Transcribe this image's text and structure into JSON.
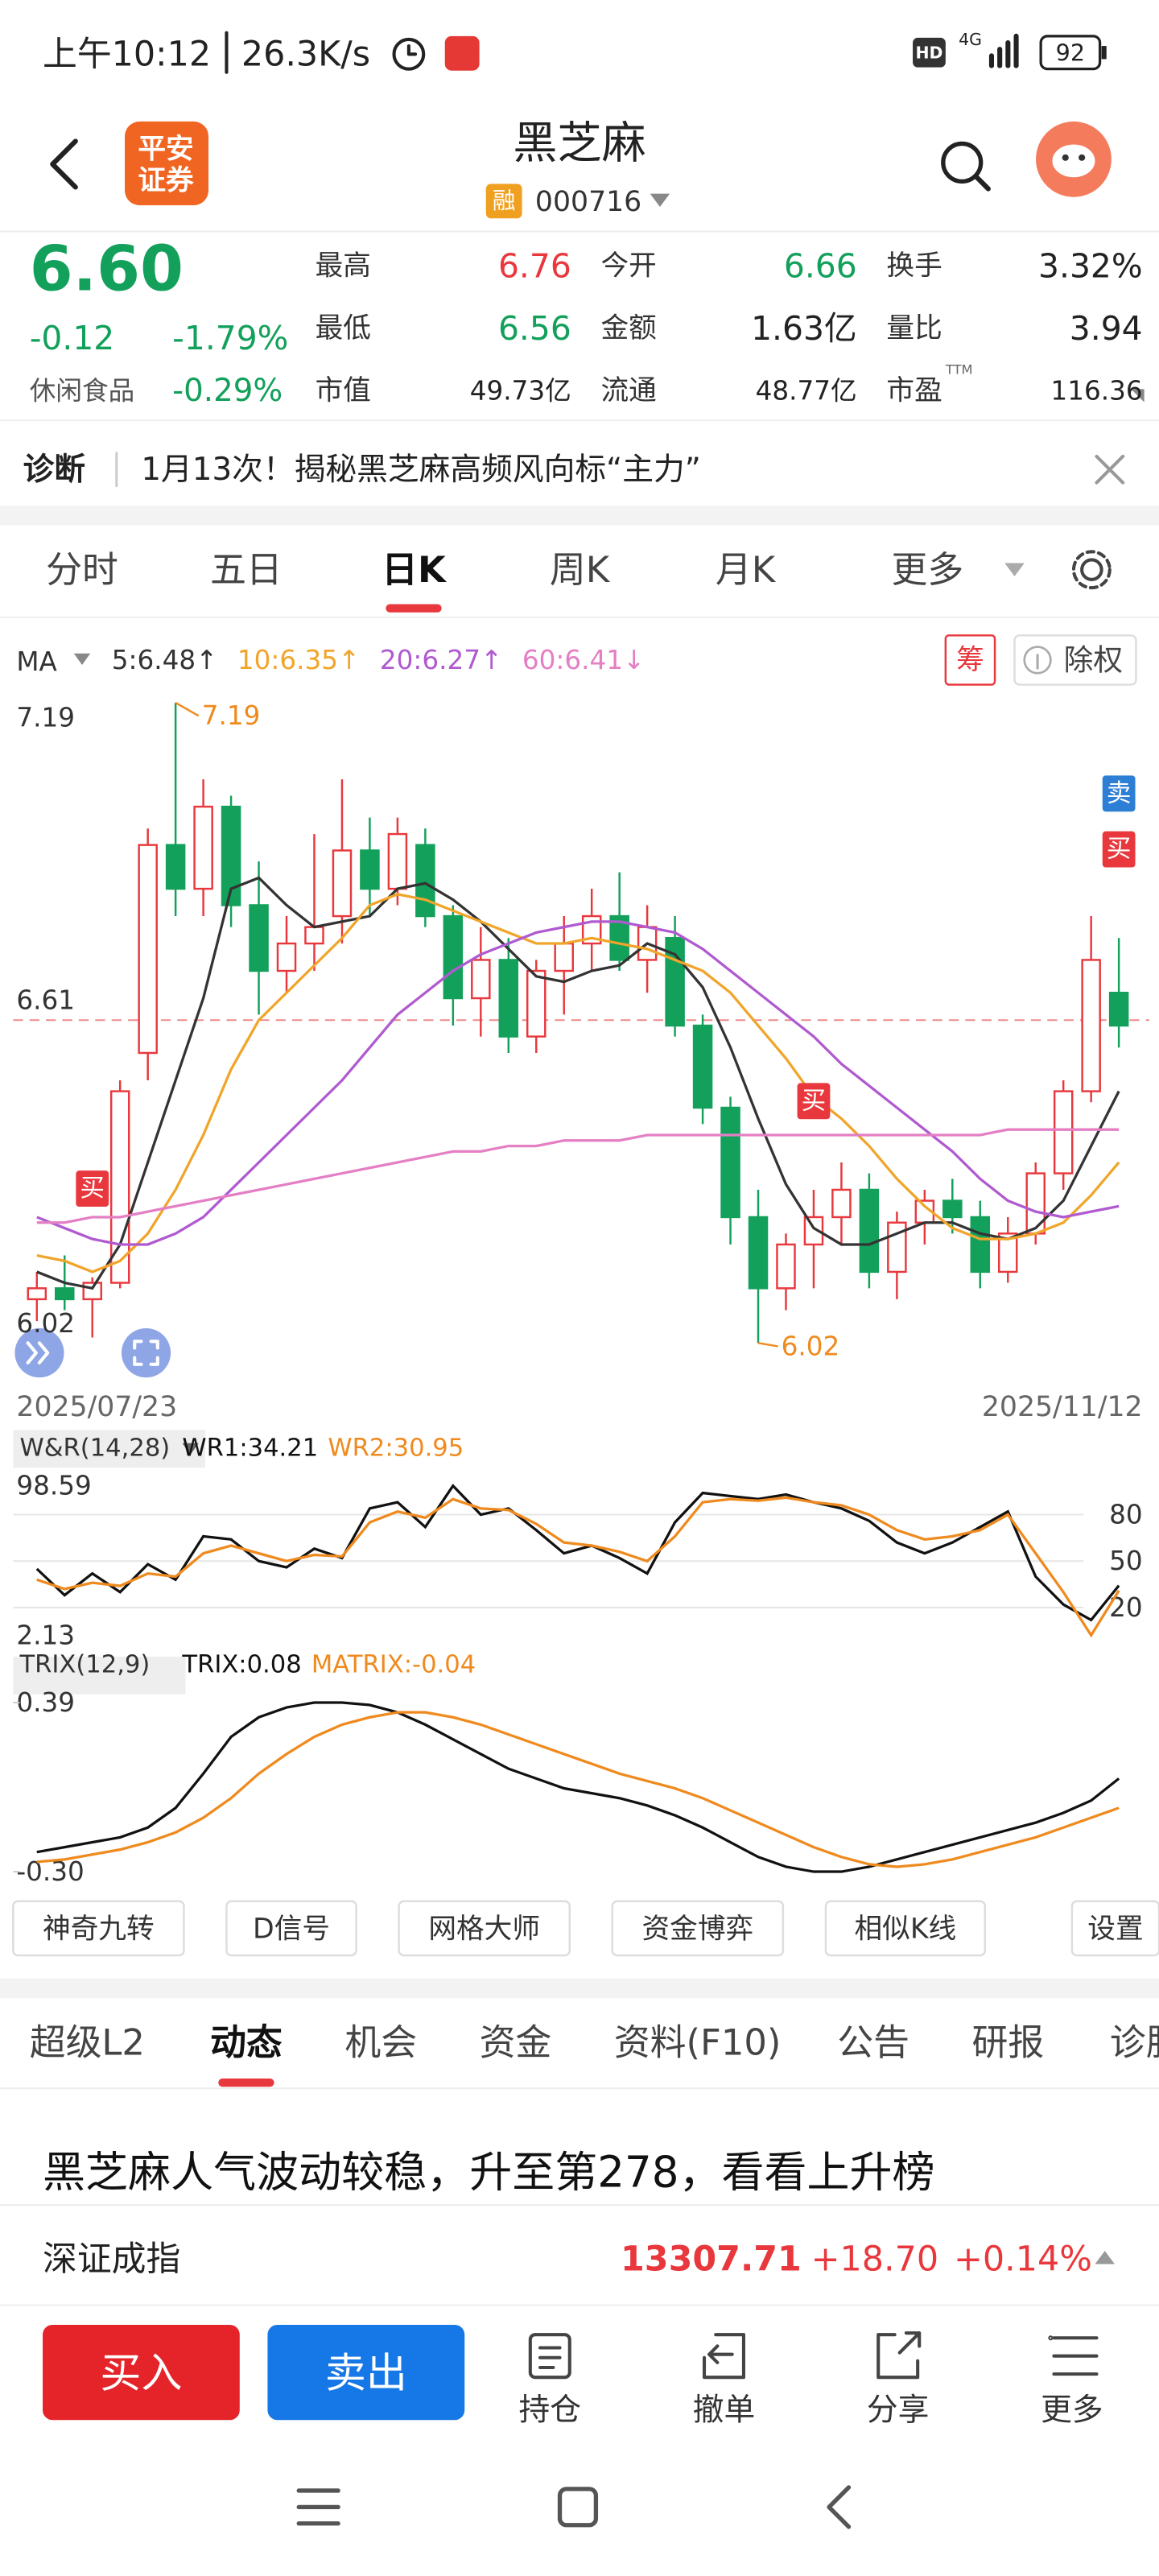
{
  "status_bar": {
    "time": "上午10:12",
    "speed": "26.3K/s",
    "hd": "HD",
    "network": "4G",
    "battery": "92"
  },
  "header": {
    "broker": [
      "平安",
      "证券"
    ],
    "name": "黑芝麻",
    "tag": "融",
    "code": "000716"
  },
  "quote": {
    "price": "6.60",
    "change": "-0.12",
    "change_pct": "-1.79%",
    "sector": "休闲食品",
    "sector_pct": "-0.29%",
    "stats": [
      [
        {
          "label": "最高",
          "value": "6.76",
          "color": "#e8383d"
        },
        {
          "label": "今开",
          "value": "6.66",
          "color": "#13a05b"
        },
        {
          "label": "换手",
          "value": "3.32%"
        }
      ],
      [
        {
          "label": "最低",
          "value": "6.56",
          "color": "#13a05b"
        },
        {
          "label": "金额",
          "value": "1.63亿"
        },
        {
          "label": "量比",
          "value": "3.94"
        }
      ],
      [
        {
          "label": "市值",
          "value": "49.73亿"
        },
        {
          "label": "流通",
          "value": "48.77亿"
        },
        {
          "label": "市盈",
          "sup": "TTM",
          "value": "116.36"
        }
      ]
    ]
  },
  "diagnosis": {
    "label": "诊断",
    "text": "1月13次！揭秘黑芝麻高频风向标“主力”"
  },
  "period_tabs": {
    "items": [
      "分时",
      "五日",
      "日K",
      "周K",
      "月K",
      "更多"
    ],
    "active": 2
  },
  "chart_tools": {
    "ma_label": "MA",
    "chip": "筹",
    "exright": "除权"
  },
  "chart_data": [
    {
      "type": "candlestick",
      "categories": [
        "2025/07/23",
        null,
        null,
        null,
        null,
        null,
        null,
        null,
        null,
        null,
        null,
        null,
        null,
        null,
        null,
        null,
        null,
        null,
        null,
        null,
        null,
        null,
        null,
        null,
        null,
        null,
        null,
        null,
        null,
        null,
        null,
        null,
        null,
        null,
        null,
        null,
        null,
        null,
        null,
        "2025/11/12"
      ],
      "open": [
        6.1,
        6.12,
        6.1,
        6.13,
        6.55,
        6.93,
        6.85,
        7.0,
        6.82,
        6.7,
        6.75,
        6.8,
        6.92,
        6.85,
        6.93,
        6.8,
        6.65,
        6.72,
        6.58,
        6.7,
        6.75,
        6.8,
        6.72,
        6.76,
        6.6,
        6.45,
        6.25,
        6.12,
        6.2,
        6.25,
        6.3,
        6.15,
        6.24,
        6.28,
        6.25,
        6.15,
        6.22,
        6.33,
        6.48,
        6.66
      ],
      "high": [
        6.15,
        6.18,
        6.14,
        6.5,
        6.96,
        7.19,
        7.05,
        7.02,
        6.9,
        6.8,
        6.95,
        7.05,
        6.98,
        6.98,
        6.96,
        6.82,
        6.78,
        6.76,
        6.72,
        6.8,
        6.85,
        6.88,
        6.82,
        6.8,
        6.62,
        6.47,
        6.3,
        6.22,
        6.3,
        6.35,
        6.33,
        6.26,
        6.3,
        6.32,
        6.28,
        6.25,
        6.35,
        6.5,
        6.8,
        6.76
      ],
      "low": [
        6.06,
        6.08,
        6.03,
        6.12,
        6.5,
        6.8,
        6.8,
        6.78,
        6.62,
        6.66,
        6.7,
        6.75,
        6.8,
        6.82,
        6.78,
        6.6,
        6.58,
        6.55,
        6.55,
        6.62,
        6.7,
        6.7,
        6.66,
        6.58,
        6.42,
        6.2,
        6.02,
        6.08,
        6.12,
        6.2,
        6.12,
        6.1,
        6.2,
        6.22,
        6.12,
        6.13,
        6.2,
        6.3,
        6.46,
        6.56
      ],
      "close": [
        6.12,
        6.1,
        6.13,
        6.48,
        6.93,
        6.85,
        7.0,
        6.82,
        6.7,
        6.75,
        6.78,
        6.92,
        6.85,
        6.95,
        6.8,
        6.65,
        6.72,
        6.58,
        6.7,
        6.75,
        6.8,
        6.72,
        6.78,
        6.6,
        6.45,
        6.25,
        6.12,
        6.2,
        6.25,
        6.3,
        6.15,
        6.24,
        6.28,
        6.25,
        6.15,
        6.22,
        6.33,
        6.48,
        6.72,
        6.6
      ],
      "up_color": "#e8383d",
      "down_color": "#13a05b",
      "ylim": [
        6.02,
        7.19
      ],
      "yticks": [
        7.19,
        6.61,
        6.02
      ],
      "reference_line": 6.61,
      "max_label": "7.19",
      "min_label": "6.02",
      "annotation_color": "#ef8a1e",
      "series": [
        {
          "name": "5:6.48↑",
          "color": "#333333",
          "values": [
            6.15,
            6.13,
            6.12,
            6.2,
            6.35,
            6.5,
            6.65,
            6.85,
            6.87,
            6.82,
            6.78,
            6.79,
            6.8,
            6.85,
            6.86,
            6.83,
            6.79,
            6.74,
            6.69,
            6.68,
            6.7,
            6.71,
            6.75,
            6.73,
            6.67,
            6.56,
            6.43,
            6.31,
            6.23,
            6.2,
            6.2,
            6.22,
            6.24,
            6.24,
            6.22,
            6.21,
            6.23,
            6.28,
            6.38,
            6.48
          ]
        },
        {
          "name": "10:6.35↑",
          "color": "#f0a52a",
          "values": [
            6.18,
            6.17,
            6.15,
            6.17,
            6.22,
            6.3,
            6.4,
            6.52,
            6.61,
            6.66,
            6.71,
            6.76,
            6.82,
            6.84,
            6.83,
            6.81,
            6.79,
            6.77,
            6.75,
            6.75,
            6.76,
            6.75,
            6.74,
            6.72,
            6.7,
            6.66,
            6.6,
            6.54,
            6.47,
            6.43,
            6.38,
            6.32,
            6.27,
            6.23,
            6.21,
            6.21,
            6.22,
            6.24,
            6.29,
            6.35
          ]
        },
        {
          "name": "20:6.27↑",
          "color": "#b05ad0",
          "values": [
            6.25,
            6.23,
            6.21,
            6.2,
            6.2,
            6.22,
            6.25,
            6.3,
            6.35,
            6.4,
            6.45,
            6.5,
            6.56,
            6.62,
            6.66,
            6.7,
            6.73,
            6.75,
            6.77,
            6.78,
            6.79,
            6.79,
            6.78,
            6.77,
            6.74,
            6.7,
            6.66,
            6.62,
            6.58,
            6.53,
            6.49,
            6.45,
            6.41,
            6.37,
            6.32,
            6.28,
            6.26,
            6.25,
            6.26,
            6.27
          ]
        },
        {
          "name": "60:6.41↓",
          "color": "#e47fc4",
          "values": [
            6.24,
            6.24,
            6.25,
            6.25,
            6.26,
            6.27,
            6.28,
            6.29,
            6.3,
            6.31,
            6.32,
            6.33,
            6.34,
            6.35,
            6.36,
            6.37,
            6.37,
            6.38,
            6.38,
            6.39,
            6.39,
            6.39,
            6.4,
            6.4,
            6.4,
            6.4,
            6.4,
            6.4,
            6.4,
            6.4,
            6.4,
            6.4,
            6.4,
            6.4,
            6.4,
            6.41,
            6.41,
            6.41,
            6.41,
            6.41
          ]
        }
      ],
      "signals": [
        {
          "label": "买",
          "index": 2,
          "color": "#e8383d"
        },
        {
          "label": "买",
          "index": 28,
          "color": "#e8383d"
        },
        {
          "label": "买",
          "index": 39,
          "color": "#e8383d"
        },
        {
          "label": "卖",
          "index": 39,
          "color": "#2d7fd6"
        }
      ]
    },
    {
      "type": "line",
      "title": "W&R(14,28)",
      "ylim": [
        2.13,
        98.59
      ],
      "ylim_labels": "left",
      "yticks": [
        20,
        50,
        80
      ],
      "ytick_side": "right",
      "grid": true,
      "series": [
        {
          "name": "WR1:34.21",
          "color": "#111111",
          "values": [
            45,
            28,
            42,
            30,
            48,
            38,
            66,
            64,
            50,
            46,
            58,
            52,
            84,
            88,
            72,
            98.59,
            80,
            84,
            70,
            55,
            60,
            52,
            42,
            75,
            94,
            92,
            90,
            93,
            88,
            84,
            76,
            62,
            55,
            62,
            72,
            82,
            40,
            22,
            12,
            34.21
          ]
        },
        {
          "name": "WR2:30.95",
          "color": "#ef8a1e",
          "values": [
            38,
            32,
            36,
            34,
            42,
            40,
            55,
            60,
            55,
            50,
            54,
            53,
            75,
            82,
            78,
            90,
            84,
            83,
            74,
            62,
            60,
            56,
            50,
            66,
            88,
            90,
            89,
            91,
            88,
            86,
            80,
            70,
            64,
            66,
            70,
            80,
            55,
            30,
            2.13,
            30.95
          ]
        }
      ]
    },
    {
      "type": "line",
      "title": "TRIX(12,9)",
      "ylim": [
        -0.3,
        0.39
      ],
      "yticks": [
        0.39,
        {
          "value": -0.3,
          "label": "-0.30"
        }
      ],
      "ytick_side": "left",
      "grid": false,
      "series": [
        {
          "name": "TRIX:0.08",
          "color": "#111111",
          "values": [
            -0.22,
            -0.2,
            -0.18,
            -0.16,
            -0.12,
            -0.04,
            0.1,
            0.25,
            0.33,
            0.37,
            0.39,
            0.39,
            0.38,
            0.35,
            0.3,
            0.24,
            0.18,
            0.12,
            0.08,
            0.04,
            0.02,
            0.0,
            -0.03,
            -0.07,
            -0.12,
            -0.18,
            -0.24,
            -0.28,
            -0.3,
            -0.3,
            -0.28,
            -0.25,
            -0.22,
            -0.19,
            -0.16,
            -0.13,
            -0.1,
            -0.06,
            -0.01,
            0.08
          ]
        },
        {
          "name": "MATRIX:-0.04",
          "color": "#ef8a1e",
          "values": [
            -0.26,
            -0.25,
            -0.23,
            -0.21,
            -0.18,
            -0.14,
            -0.08,
            0.0,
            0.1,
            0.18,
            0.25,
            0.3,
            0.33,
            0.35,
            0.35,
            0.33,
            0.3,
            0.26,
            0.22,
            0.18,
            0.14,
            0.1,
            0.07,
            0.04,
            0.0,
            -0.05,
            -0.1,
            -0.15,
            -0.2,
            -0.24,
            -0.27,
            -0.28,
            -0.27,
            -0.25,
            -0.22,
            -0.19,
            -0.16,
            -0.12,
            -0.08,
            -0.04
          ]
        }
      ]
    }
  ],
  "indicator_tools": [
    "神奇九转",
    "D信号",
    "网格大师",
    "资金博弈",
    "相似K线",
    "设置"
  ],
  "section_tabs": {
    "items": [
      "超级L2",
      "动态",
      "机会",
      "资金",
      "资料(F10)",
      "公告",
      "研报",
      "诊股"
    ],
    "active": 1
  },
  "headline": "黑芝麻人气波动较稳，升至第278，看看上升榜",
  "index": {
    "name": "深证成指",
    "value": "13307.71",
    "change": "+18.70",
    "pct": "+0.14%"
  },
  "actions": {
    "buy": "买入",
    "sell": "卖出",
    "items": [
      "持仓",
      "撤单",
      "分享",
      "更多"
    ]
  }
}
